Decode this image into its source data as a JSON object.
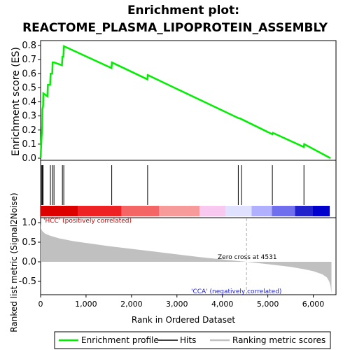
{
  "chart_data": {
    "type": "line",
    "title_line1": "Enrichment plot:",
    "title_line2": "REACTOME_PLASMA_LIPOPROTEIN_ASSEMBLY",
    "es_panel": {
      "ylabel": "Enrichment score (ES)",
      "ylim": [
        0.0,
        0.82
      ],
      "yticks": [
        "0.0",
        "0.1",
        "0.2",
        "0.3",
        "0.4",
        "0.5",
        "0.6",
        "0.7",
        "0.8"
      ],
      "xlim": [
        0,
        6500
      ],
      "series": [
        {
          "name": "Enrichment profile",
          "color": "#00ee00",
          "x": [
            0,
            20,
            35,
            40,
            55,
            60,
            150,
            160,
            210,
            220,
            255,
            265,
            290,
            300,
            470,
            480,
            500,
            515,
            1560,
            1570,
            2350,
            2360,
            4350,
            4400,
            5100,
            5110,
            5790,
            5800,
            6380
          ],
          "y": [
            0.0,
            0.14,
            0.23,
            0.35,
            0.37,
            0.46,
            0.44,
            0.52,
            0.52,
            0.6,
            0.6,
            0.68,
            0.68,
            0.68,
            0.66,
            0.72,
            0.72,
            0.795,
            0.64,
            0.68,
            0.56,
            0.59,
            0.285,
            0.28,
            0.17,
            0.18,
            0.08,
            0.1,
            0.0
          ]
        }
      ]
    },
    "hits_panel": {
      "hit_positions": [
        25,
        40,
        55,
        215,
        260,
        295,
        480,
        510,
        1565,
        2355,
        4350,
        4420,
        5100,
        5795
      ],
      "gradient_colors": [
        "#dd0000",
        "#ee2222",
        "#f46666",
        "#f79a9a",
        "#f8c8f0",
        "#e0e0ff",
        "#b0b0ff",
        "#7070ee",
        "#2222cc",
        "#0000cc"
      ],
      "gradient_stops": [
        0,
        0.13,
        0.28,
        0.41,
        0.55,
        0.64,
        0.73,
        0.8,
        0.88,
        0.94,
        1.0
      ]
    },
    "metric_panel": {
      "ylabel": "Ranked list metric (Signal2Noise)",
      "xlabel": "Rank in Ordered Dataset",
      "ylim": [
        -0.8,
        1.1
      ],
      "yticks": [
        "1.0",
        "0.5",
        "0.0",
        "-0.5"
      ],
      "xticks": [
        "0",
        "1,000",
        "2,000",
        "3,000",
        "4,000",
        "5,000",
        "6,000"
      ],
      "xtick_values": [
        0,
        1000,
        2000,
        3000,
        4000,
        5000,
        6000
      ],
      "zero_cross_label": "Zero cross at 4531",
      "zero_cross": 4531,
      "pos_label": "'HCC' (positively correlated)",
      "neg_label": "'CCA' (negatively correlated)",
      "fill_color": "#c0c0c0",
      "profile_x": [
        0,
        10,
        40,
        100,
        200,
        400,
        700,
        1000,
        1500,
        2000,
        2500,
        3000,
        3500,
        4000,
        4531,
        5000,
        5500,
        5800,
        6000,
        6200,
        6300,
        6350,
        6380,
        6400
      ],
      "profile_y": [
        1.02,
        0.85,
        0.78,
        0.72,
        0.67,
        0.6,
        0.53,
        0.48,
        0.4,
        0.33,
        0.26,
        0.19,
        0.12,
        0.06,
        0.0,
        -0.06,
        -0.13,
        -0.19,
        -0.24,
        -0.32,
        -0.4,
        -0.5,
        -0.62,
        -0.8
      ]
    },
    "legend": {
      "entries": [
        {
          "label": "Enrichment profile",
          "color": "#00ee00"
        },
        {
          "label": "Hits",
          "color": "#000000"
        },
        {
          "label": "Ranking metric scores",
          "color": "#c0c0c0"
        }
      ]
    }
  }
}
